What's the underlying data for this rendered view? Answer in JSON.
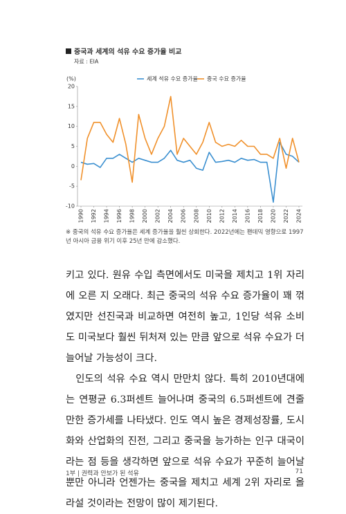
{
  "chart_data": {
    "type": "line",
    "title": "중국과 세계의 석유 수요 증가율 비교",
    "subtitle": "자료 : EIA",
    "y_label": "(%)",
    "x": [
      1990,
      1991,
      1992,
      1993,
      1994,
      1995,
      1996,
      1997,
      1998,
      1999,
      2000,
      2001,
      2002,
      2003,
      2004,
      2005,
      2006,
      2007,
      2008,
      2009,
      2010,
      2011,
      2012,
      2013,
      2014,
      2015,
      2016,
      2017,
      2018,
      2019,
      2020,
      2021,
      2022,
      2023,
      2024
    ],
    "xlim": [
      1990,
      2024
    ],
    "xticks": [
      1990,
      1992,
      1994,
      1996,
      1998,
      2000,
      2002,
      2004,
      2006,
      2008,
      2010,
      2012,
      2014,
      2016,
      2018,
      2020,
      2022,
      2024
    ],
    "ylim": [
      -10,
      20
    ],
    "yticks": [
      -10,
      -5,
      0,
      5,
      10,
      15,
      20
    ],
    "series": [
      {
        "name": "세계 석유 수요 증가율",
        "color": "#3a8fd0",
        "values": [
          1,
          0.5,
          0.7,
          -0.3,
          2,
          2,
          3,
          2,
          1,
          2,
          1.5,
          1,
          1,
          2,
          4,
          1.5,
          1,
          1.5,
          -0.5,
          -1,
          3.5,
          1,
          1.2,
          1.5,
          1,
          2,
          1.5,
          1.7,
          1,
          1,
          -9,
          6,
          3,
          2.5,
          1
        ]
      },
      {
        "name": "중국 수요 증가율",
        "color": "#f0902a",
        "values": [
          -3.5,
          7,
          11,
          11,
          8,
          6,
          12,
          5.5,
          -4,
          13,
          7,
          3,
          7,
          10,
          17.5,
          3,
          7,
          5,
          3,
          6,
          11,
          6,
          5,
          5.5,
          5,
          6.5,
          5,
          5,
          3,
          3,
          2,
          7,
          -0.5,
          7,
          1
        ]
      }
    ],
    "note": "※ 중국의 석유 수요 증가율은 세계 증가율을 훨씬 상회한다. 2022년에는 팬데믹 영향으로 1997년 아시아 금융 위기 이후 25년 만에 감소했다."
  },
  "body": {
    "paragraphs": [
      "키고 있다. 원유 수입 측면에서도 미국을 제치고 1위 자리에 오른 지 오래다. 최근 중국의 석유 수요 증가율이 꽤 꺾였지만 선진국과 비교하면 여전히 높고, 1인당 석유 소비도 미국보다 훨씬 뒤처져 있는 만큼 앞으로 석유 수요가 더 늘어날 가능성이 크다.",
      "인도의 석유 수요 역시 만만치 않다. 특히 2010년대에는 연평균 6.3퍼센트 늘어나며 중국의 6.5퍼센트에 견줄 만한 증가세를 나타냈다. 인도 역시 높은 경제성장률, 도시화와 산업화의 진전, 그리고 중국을 능가하는 인구 대국이라는 점 등을 생각하면 앞으로 석유 수요가 꾸준히 늘어날 뿐만 아니라 언젠가는 중국을 제치고 세계 2위 자리로 올라설 것이라는 전망이 많이 제기된다."
    ]
  },
  "footer": {
    "chapter": "1부 | 권력과 안보가 된 석유",
    "page": "71"
  }
}
